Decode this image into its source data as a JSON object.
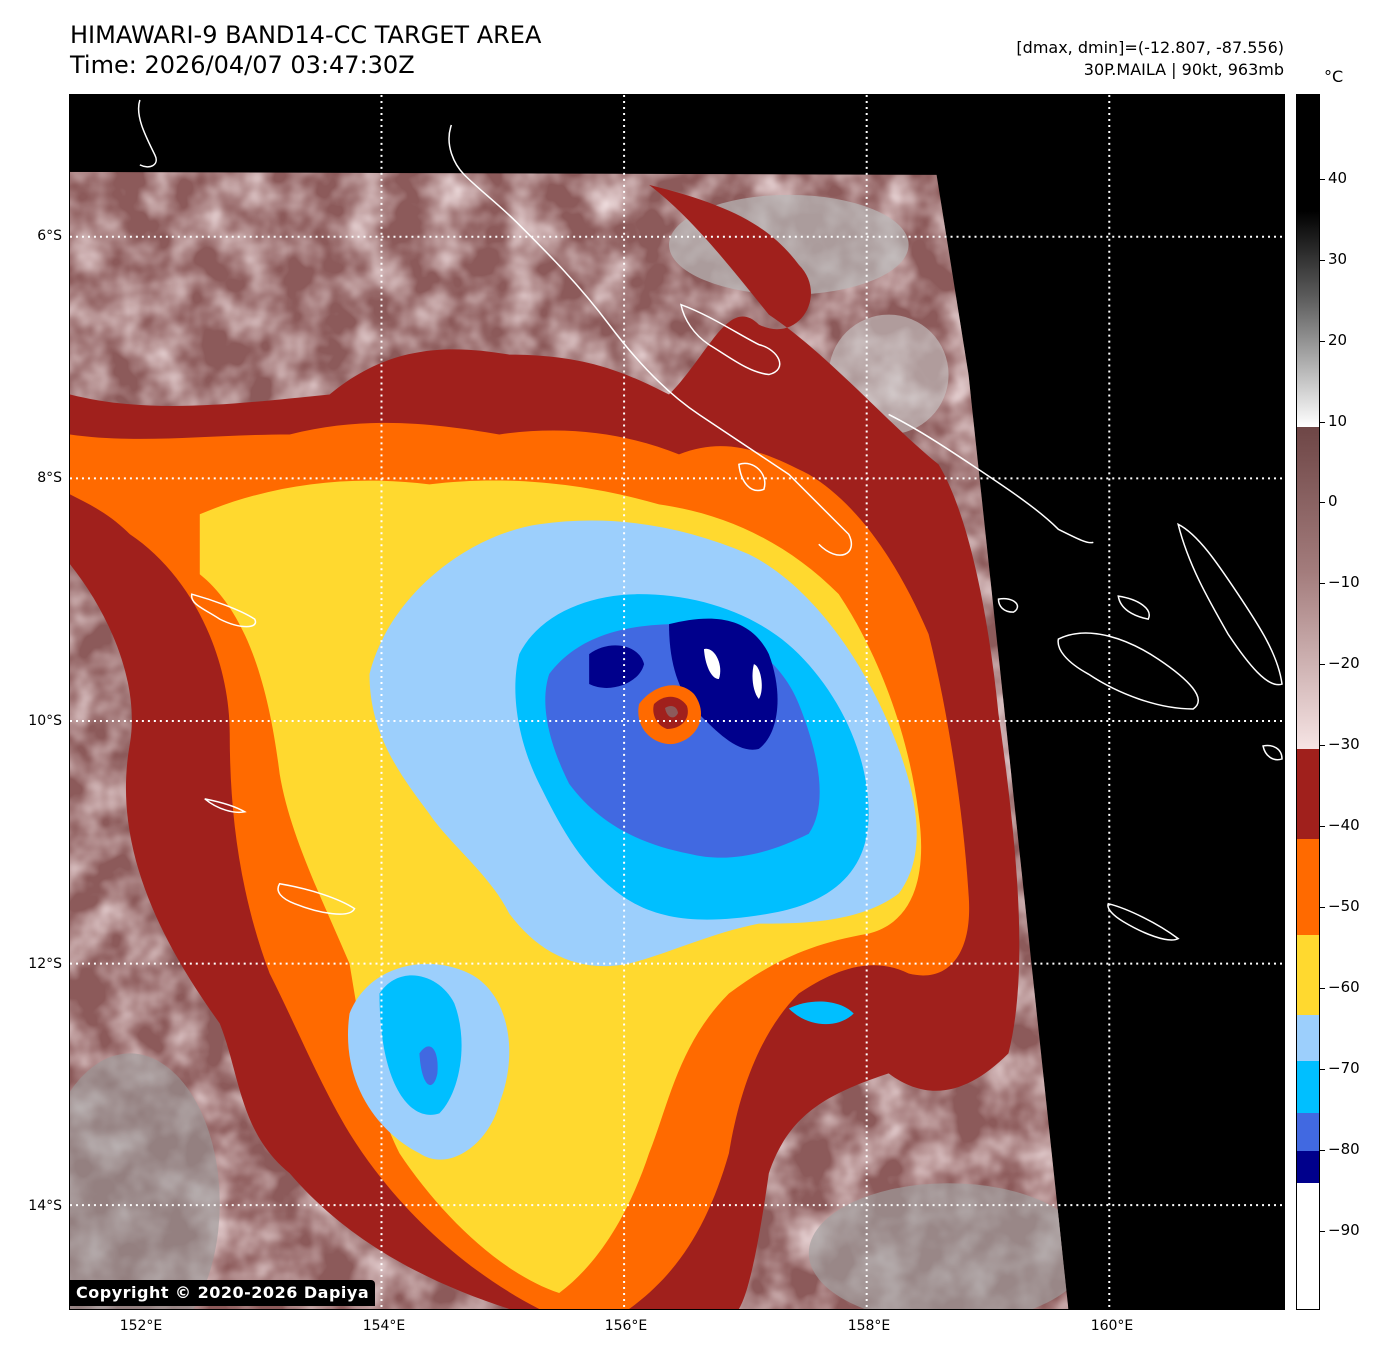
{
  "header": {
    "title_line1": "HIMAWARI-9 BAND14-CC TARGET AREA",
    "title_line2": "Time: 2026/04/07 03:47:30Z",
    "meta_line1": "[dmax, dmin]=(-12.807, -87.556)",
    "meta_line2": "30P.MAILA | 90kt, 963mb"
  },
  "map": {
    "copyright": "Copyright © 2020-2026 Dapiya",
    "lat_labels": [
      "6°S",
      "8°S",
      "10°S",
      "12°S",
      "14°S"
    ],
    "lon_labels": [
      "152°E",
      "154°E",
      "156°E",
      "158°E",
      "160°E"
    ],
    "lat_values": [
      -6,
      -8,
      -10,
      -12,
      -14
    ],
    "lon_values": [
      152,
      154,
      156,
      158,
      160
    ],
    "extent": {
      "lon_min": 151.42,
      "lon_max": 161.42,
      "lat_max": -4.84,
      "lat_min": -14.84
    },
    "storm_center": {
      "lon": 156.45,
      "lat": -9.9
    },
    "colors": {
      "background": "#000000",
      "coast": "#ffffff",
      "cold_band_red": "#a0201c",
      "orange": "#ff6a00",
      "yellow": "#ffd92f",
      "light_blue": "#9ccffc",
      "cyan": "#00bfff",
      "blue": "#4169e1",
      "navy": "#00008c",
      "warm_cloud": "#e8cccc",
      "mauve": "#8c5a5a"
    }
  },
  "colorbar": {
    "unit": "°C",
    "ticks": [
      "40",
      "30",
      "20",
      "10",
      "0",
      "−10",
      "−20",
      "−30",
      "−40",
      "−50",
      "−60",
      "−70",
      "−80",
      "−90"
    ],
    "tick_values": [
      40,
      30,
      20,
      10,
      0,
      -10,
      -20,
      -30,
      -40,
      -50,
      -60,
      -70,
      -80,
      -90
    ],
    "range": [
      -100,
      50
    ]
  }
}
